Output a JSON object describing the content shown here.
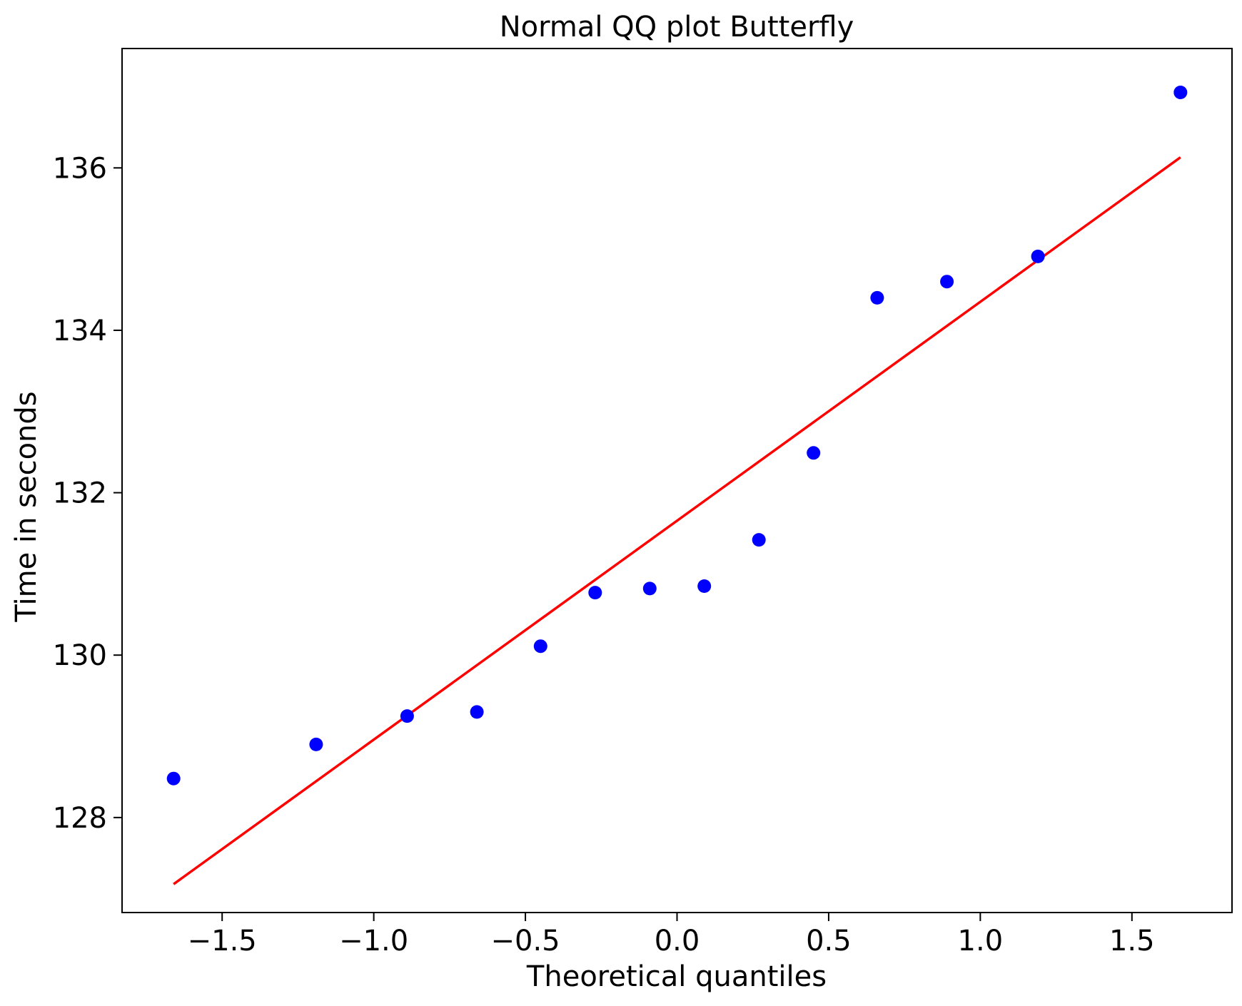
{
  "chart_data": {
    "type": "scatter",
    "title": "Normal QQ plot Butterfly",
    "xlabel": "Theoretical quantiles",
    "ylabel": "Time in seconds",
    "xlim": [
      -1.83,
      1.83
    ],
    "ylim": [
      126.83,
      137.47
    ],
    "x_ticks": [
      -1.5,
      -1.0,
      -0.5,
      0.0,
      0.5,
      1.0,
      1.5
    ],
    "x_tick_labels": [
      "−1.5",
      "−1.0",
      "−0.5",
      "0.0",
      "0.5",
      "1.0",
      "1.5"
    ],
    "y_ticks": [
      128,
      130,
      132,
      134,
      136
    ],
    "y_tick_labels": [
      "128",
      "130",
      "132",
      "134",
      "136"
    ],
    "grid": false,
    "series": [
      {
        "type": "scatter",
        "color": "#0000ff",
        "x": [
          -1.66,
          -1.19,
          -0.89,
          -0.66,
          -0.45,
          -0.27,
          -0.09,
          0.09,
          0.27,
          0.45,
          0.66,
          0.89,
          1.19,
          1.66
        ],
        "y": [
          128.48,
          128.9,
          129.25,
          129.3,
          130.11,
          130.77,
          130.82,
          130.85,
          131.42,
          132.49,
          134.4,
          134.6,
          134.91,
          136.93
        ]
      },
      {
        "type": "line",
        "color": "#ff0000",
        "x": [
          -1.66,
          1.66
        ],
        "y": [
          127.18,
          136.13
        ]
      }
    ]
  }
}
